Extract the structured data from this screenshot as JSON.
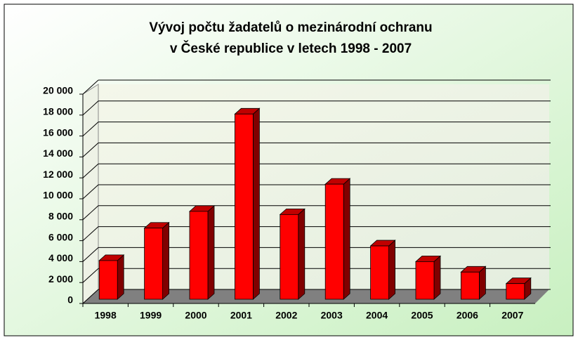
{
  "chart_data": {
    "type": "bar3d",
    "title": [
      "Vývoj počtu žadatelů o mezinárodní ochranu",
      "v České republice v letech 1998 - 2007"
    ],
    "categories": [
      "1998",
      "1999",
      "2000",
      "2001",
      "2002",
      "2003",
      "2004",
      "2005",
      "2006",
      "2007"
    ],
    "values": [
      4100,
      7200,
      8800,
      18100,
      8500,
      11400,
      5500,
      4000,
      3000,
      1900
    ],
    "color": "#ff0000",
    "ylim": [
      0,
      20000
    ],
    "yticks": [
      0,
      {
        "value": 2000,
        "label": "2 000"
      },
      {
        "value": 4000,
        "label": "4 000"
      },
      {
        "value": 6000,
        "label": "6 000"
      },
      {
        "value": 8000,
        "label": "8 000"
      },
      {
        "value": 10000,
        "label": "10 000"
      },
      {
        "value": 12000,
        "label": "12 000"
      },
      {
        "value": 14000,
        "label": "14 000"
      },
      {
        "value": 16000,
        "label": "16 000"
      },
      {
        "value": 18000,
        "label": "18 000"
      },
      {
        "value": 20000,
        "label": "20 000"
      }
    ],
    "grid": true
  }
}
